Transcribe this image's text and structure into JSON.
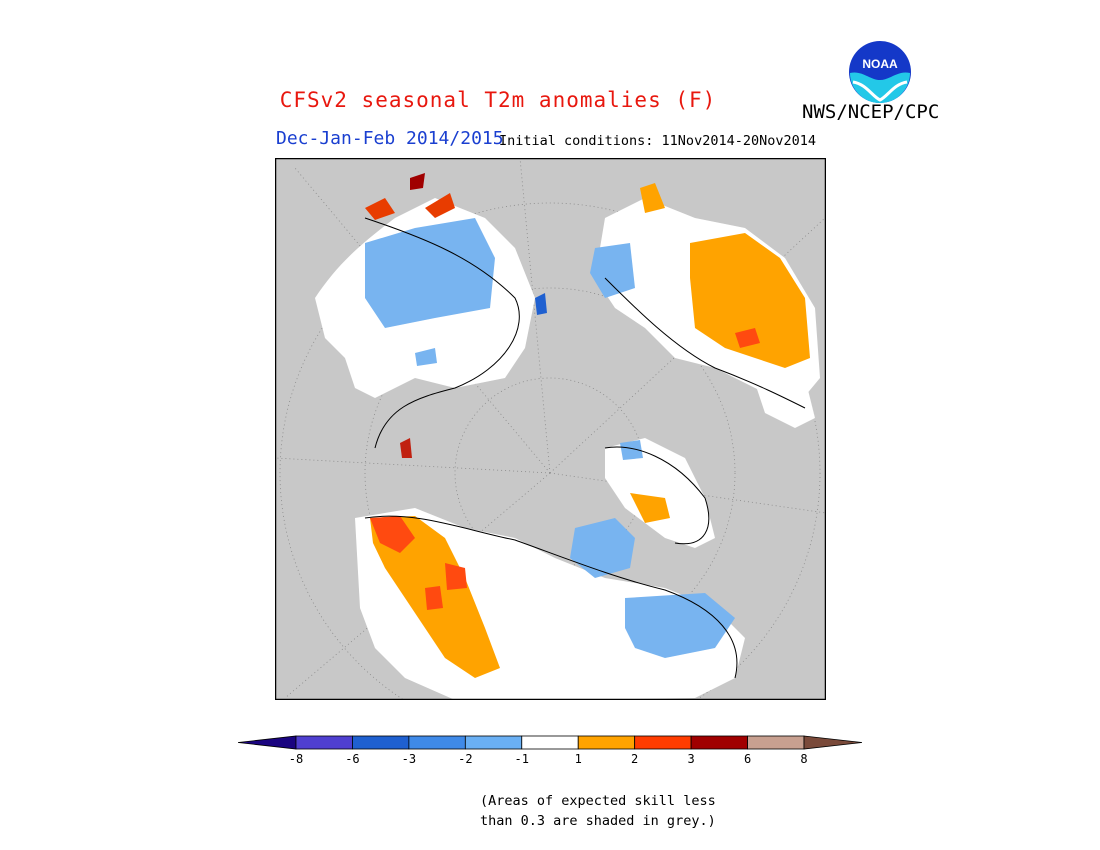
{
  "title": "CFSv2 seasonal T2m anomalies (F)",
  "title_color": "#e8170e",
  "agency": "NWS/NCEP/CPC",
  "logo_text": "NOAA",
  "season": "Dec-Jan-Feb 2014/2015",
  "season_color": "#1a3fd0",
  "initial_conditions": "Initial conditions: 11Nov2014-20Nov2014",
  "skill_note_line1": "(Areas of expected skill less",
  "skill_note_line2": "than 0.3 are shaded in grey.)",
  "colorbar": {
    "ticks": [
      "-8",
      "-6",
      "-3",
      "-2",
      "-1",
      "1",
      "2",
      "3",
      "6",
      "8"
    ],
    "colors": [
      "#1a0480",
      "#4f3fd0",
      "#1f60d0",
      "#3f8ae8",
      "#6ab0f4",
      "#ffffff",
      "#ffa300",
      "#ff3c00",
      "#a00000",
      "#c8a090",
      "#7a4a3a"
    ]
  },
  "map": {
    "ocean_color": "#c8c8c8",
    "land_color": "#ffffff"
  }
}
